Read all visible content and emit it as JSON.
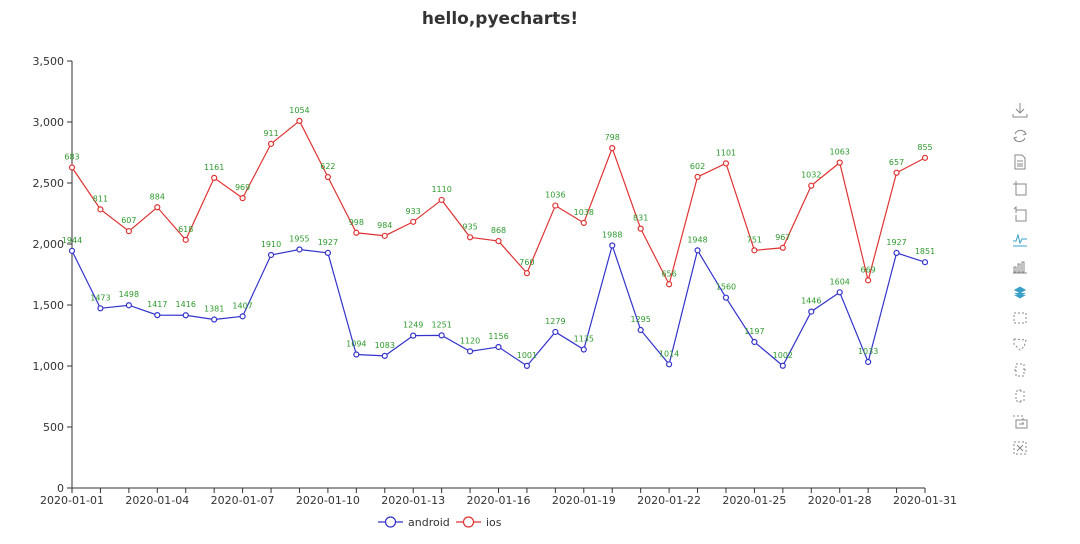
{
  "chart_data": {
    "type": "line",
    "stacked": true,
    "title": "hello,pyecharts!",
    "xlabel": "",
    "ylabel": "",
    "ylim": [
      0,
      3500
    ],
    "yticks": [
      "0",
      "500",
      "1,000",
      "1,500",
      "2,000",
      "2,500",
      "3,000",
      "3,500"
    ],
    "yticks_values": [
      0,
      500,
      1000,
      1500,
      2000,
      2500,
      3000,
      3500
    ],
    "x": [
      "2020-01-01",
      "2020-01-02",
      "2020-01-03",
      "2020-01-04",
      "2020-01-05",
      "2020-01-06",
      "2020-01-07",
      "2020-01-08",
      "2020-01-09",
      "2020-01-10",
      "2020-01-11",
      "2020-01-12",
      "2020-01-13",
      "2020-01-14",
      "2020-01-15",
      "2020-01-16",
      "2020-01-17",
      "2020-01-18",
      "2020-01-19",
      "2020-01-20",
      "2020-01-21",
      "2020-01-22",
      "2020-01-23",
      "2020-01-24",
      "2020-01-25",
      "2020-01-26",
      "2020-01-27",
      "2020-01-28",
      "2020-01-29",
      "2020-01-30",
      "2020-01-31"
    ],
    "xtick_labels": [
      "2020-01-01",
      "2020-01-04",
      "2020-01-07",
      "2020-01-10",
      "2020-01-13",
      "2020-01-16",
      "2020-01-19",
      "2020-01-22",
      "2020-01-25",
      "2020-01-28",
      "2020-01-31"
    ],
    "series": [
      {
        "name": "android",
        "color": "#3333cc",
        "values": [
          1944,
          1473,
          1498,
          1417,
          1416,
          1381,
          1407,
          1910,
          1955,
          1927,
          1094,
          1083,
          1249,
          1251,
          1120,
          1156,
          1001,
          1279,
          1135,
          1988,
          1295,
          1014,
          1948,
          1560,
          1197,
          1002,
          1446,
          1604,
          1033,
          1927,
          1851
        ]
      },
      {
        "name": "ios",
        "color": "#e03333",
        "values": [
          683,
          811,
          607,
          884,
          618,
          1161,
          969,
          911,
          1054,
          622,
          998,
          984,
          933,
          1110,
          935,
          868,
          760,
          1036,
          1038,
          798,
          831,
          656,
          602,
          1101,
          751,
          967,
          1032,
          1063,
          669,
          657,
          855
        ]
      }
    ],
    "label_color": "#2e9a2e",
    "legend": {
      "position": "bottom-center",
      "items": [
        "android",
        "ios"
      ]
    },
    "grid": false
  },
  "toolbox": [
    "save-as-image",
    "restore",
    "data-view",
    "zoom",
    "zoom-back",
    "line",
    "bar",
    "stack",
    "rect-select",
    "polygon-select",
    "keep-select",
    "clear-select",
    "brush",
    "clear"
  ]
}
